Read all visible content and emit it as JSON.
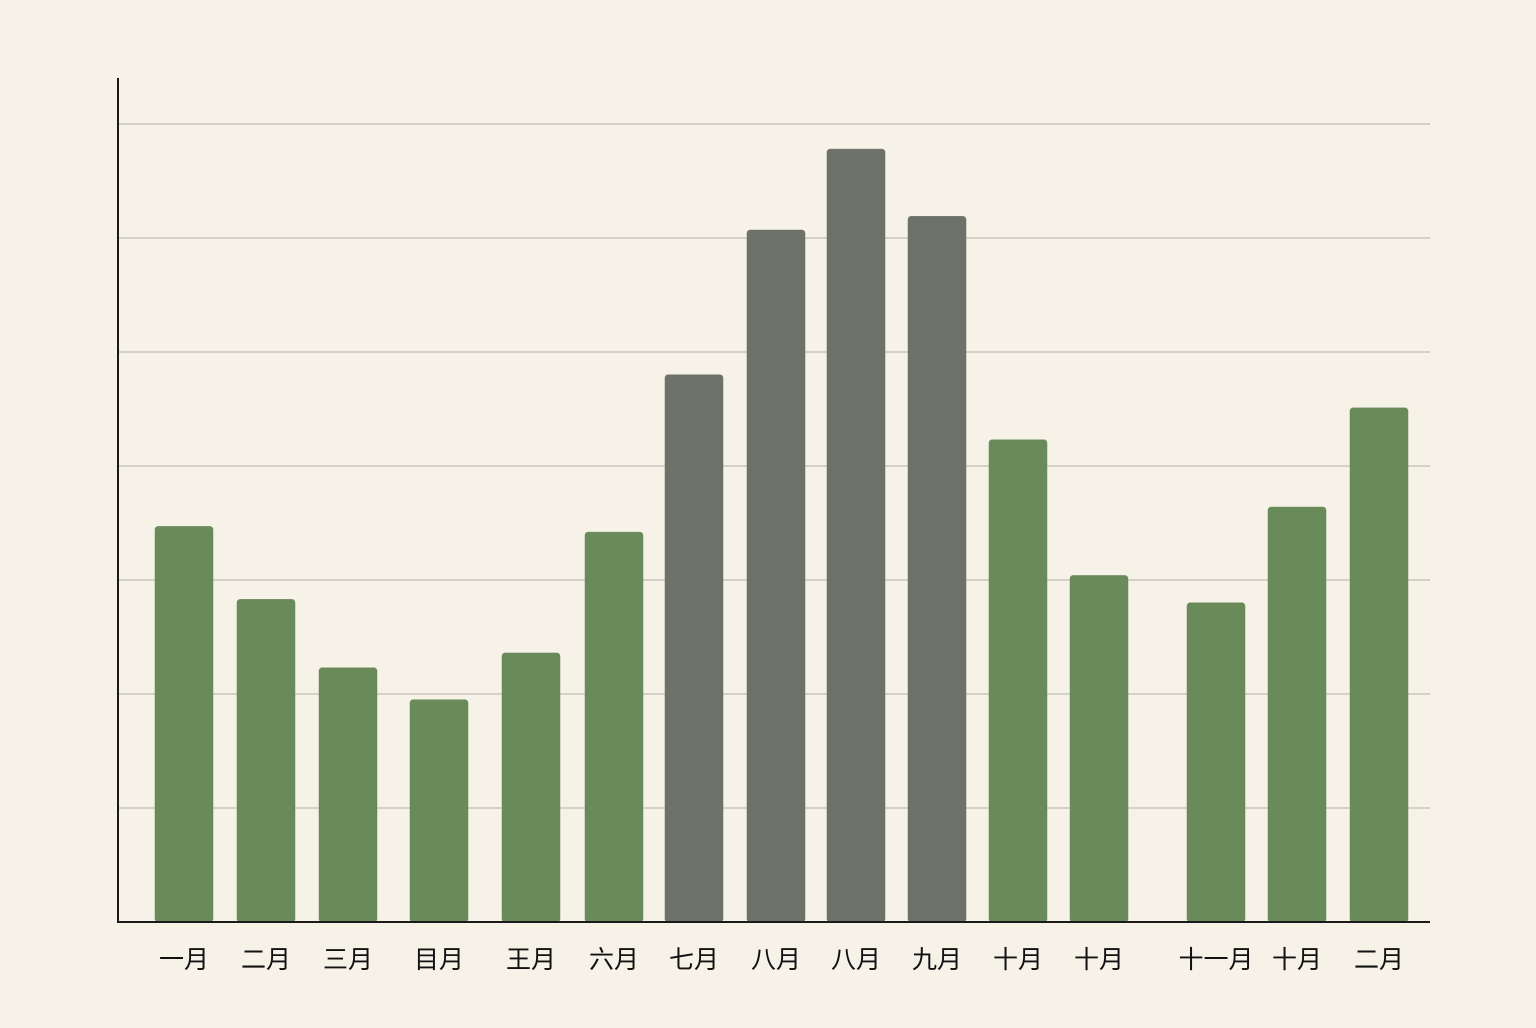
{
  "chart_data": {
    "type": "bar",
    "title": "",
    "xlabel": "",
    "ylabel": "",
    "grid": true,
    "ylim": [
      0,
      7.4
    ],
    "categories": [
      "一月",
      "二月",
      "三月",
      "目月",
      "王月",
      "六月",
      "七月",
      "八月",
      "八月",
      "九月",
      "十月",
      "十月",
      "十一月",
      "十月",
      "二月"
    ],
    "values": [
      3.47,
      2.83,
      2.23,
      1.95,
      2.36,
      3.42,
      4.8,
      6.07,
      6.78,
      6.19,
      4.23,
      3.04,
      2.8,
      3.64,
      4.51
    ],
    "bar_colors": [
      "#698a59",
      "#698a59",
      "#698a59",
      "#698a59",
      "#698a59",
      "#698a59",
      "#6e7168",
      "#6e7168",
      "#6e7168",
      "#6e7168",
      "#698a59",
      "#698a59",
      "#698a59",
      "#698a59",
      "#698a59"
    ],
    "colors": {
      "green": "#698a59",
      "gray": "#6e7168",
      "background": "#f6f2e8",
      "grid": "#c9c7bb",
      "axis": "#1a1a1a"
    }
  }
}
